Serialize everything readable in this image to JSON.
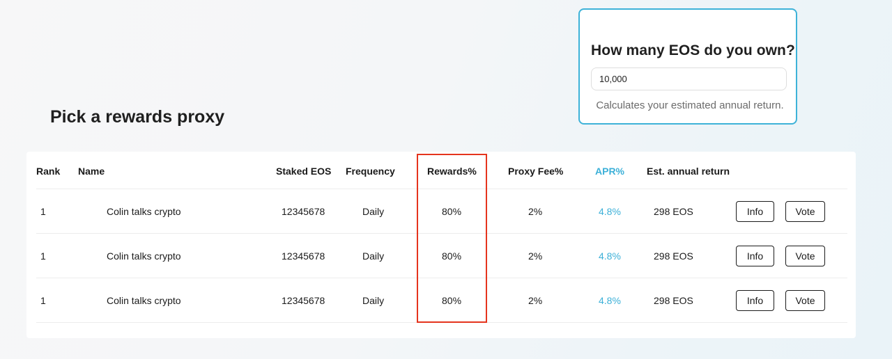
{
  "calculator": {
    "title": "How many EOS do you own?",
    "input_value": "10,000",
    "hint": "Calculates your estimated annual return."
  },
  "page_title": "Pick a rewards proxy",
  "table": {
    "headers": {
      "rank": "Rank",
      "name": "Name",
      "staked": "Staked EOS",
      "frequency": "Frequency",
      "rewards": "Rewards%",
      "fee": "Proxy Fee%",
      "apr": "APR%",
      "annual": "Est. annual return"
    },
    "rows": [
      {
        "rank": "1",
        "name": "Colin talks crypto",
        "staked": "12345678",
        "frequency": "Daily",
        "rewards": "80%",
        "fee": "2%",
        "apr": "4.8%",
        "annual": "298 EOS",
        "info_label": "Info",
        "vote_label": "Vote"
      },
      {
        "rank": "1",
        "name": "Colin talks crypto",
        "staked": "12345678",
        "frequency": "Daily",
        "rewards": "80%",
        "fee": "2%",
        "apr": "4.8%",
        "annual": "298 EOS",
        "info_label": "Info",
        "vote_label": "Vote"
      },
      {
        "rank": "1",
        "name": "Colin talks crypto",
        "staked": "12345678",
        "frequency": "Daily",
        "rewards": "80%",
        "fee": "2%",
        "apr": "4.8%",
        "annual": "298 EOS",
        "info_label": "Info",
        "vote_label": "Vote"
      }
    ]
  },
  "colors": {
    "accent": "#3cb0d8",
    "highlight": "#e5341d"
  }
}
